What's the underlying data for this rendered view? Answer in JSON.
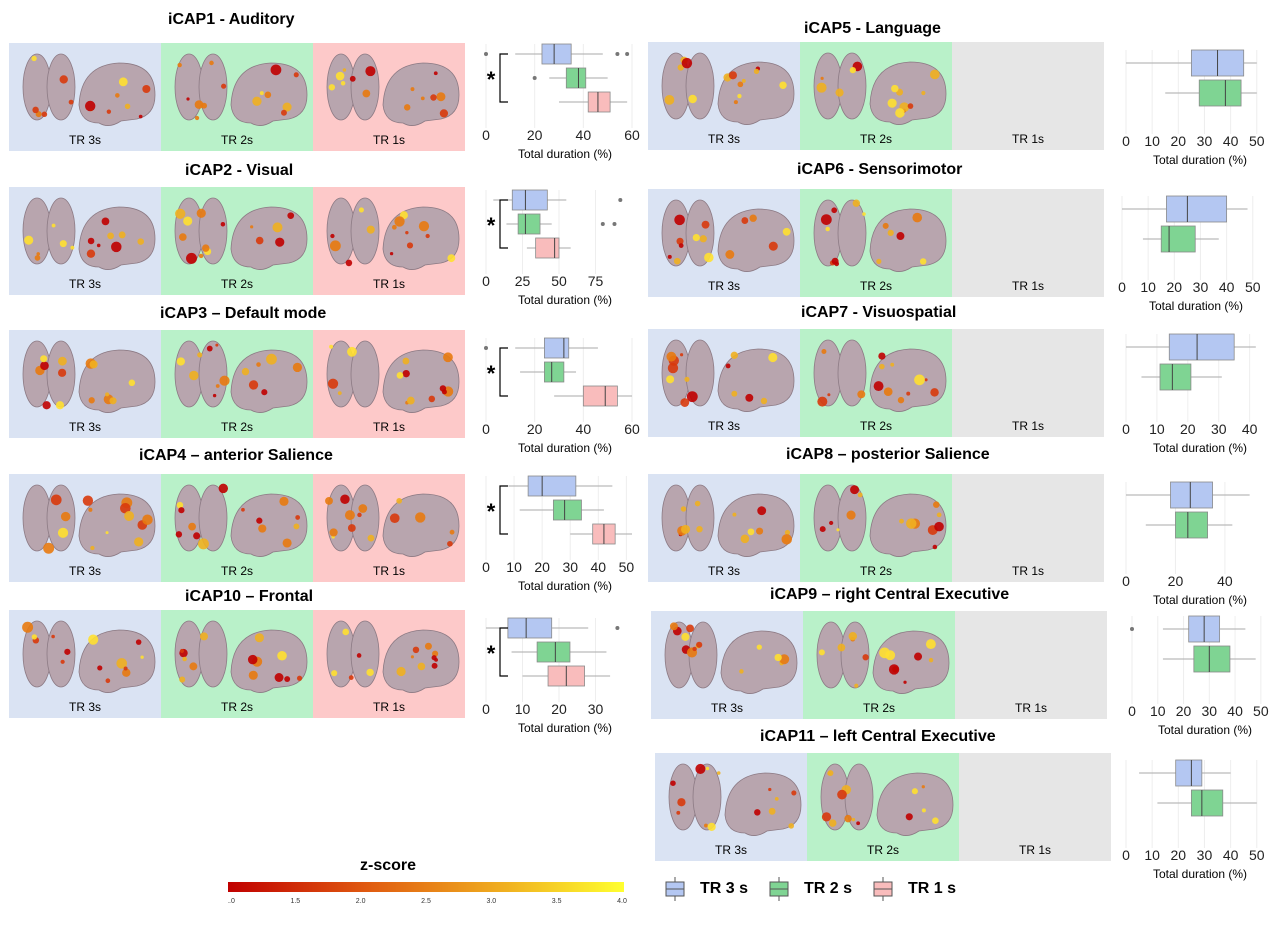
{
  "panels": [
    {
      "id": "icap1",
      "title": "iCAP1 - Auditory",
      "tr_labels": [
        "TR 3s",
        "TR 2s",
        "TR 1s"
      ],
      "has_tr1": true,
      "significant": true,
      "boxes": [
        {
          "tr": "TR 3s",
          "q1": 23,
          "median": 28,
          "q3": 35,
          "wlo": 12,
          "whi": 48,
          "outliers": [
            0,
            54,
            58
          ]
        },
        {
          "tr": "TR 2s",
          "q1": 33,
          "median": 38,
          "q3": 41,
          "wlo": 26,
          "whi": 50,
          "outliers": [
            20
          ]
        },
        {
          "tr": "TR 1s",
          "q1": 42,
          "median": 46,
          "q3": 51,
          "wlo": 30,
          "whi": 58,
          "outliers": []
        }
      ],
      "xlim": [
        0,
        60
      ],
      "ticks": [
        0,
        20,
        40,
        60
      ],
      "xlabel": "Total duration (%)"
    },
    {
      "id": "icap2",
      "title": "iCAP2 - Visual",
      "tr_labels": [
        "TR 3s",
        "TR 2s",
        "TR 1s"
      ],
      "has_tr1": true,
      "significant": true,
      "boxes": [
        {
          "tr": "TR 3s",
          "q1": 18,
          "median": 27,
          "q3": 42,
          "wlo": 5,
          "whi": 55,
          "outliers": [
            92
          ]
        },
        {
          "tr": "TR 2s",
          "q1": 22,
          "median": 27,
          "q3": 37,
          "wlo": 14,
          "whi": 45,
          "outliers": [
            80,
            88
          ]
        },
        {
          "tr": "TR 1s",
          "q1": 34,
          "median": 47,
          "q3": 50,
          "wlo": 28,
          "whi": 58,
          "outliers": []
        }
      ],
      "xlim": [
        0,
        100
      ],
      "ticks": [
        0,
        25,
        50,
        75
      ],
      "xlabel": "Total duration (%)"
    },
    {
      "id": "icap3",
      "title": "iCAP3 – Default mode",
      "tr_labels": [
        "TR 3s",
        "TR 2s",
        "TR 1s"
      ],
      "has_tr1": true,
      "significant": true,
      "boxes": [
        {
          "tr": "TR 3s",
          "q1": 24,
          "median": 32,
          "q3": 34,
          "wlo": 12,
          "whi": 46,
          "outliers": [
            0
          ]
        },
        {
          "tr": "TR 2s",
          "q1": 24,
          "median": 27,
          "q3": 32,
          "wlo": 14,
          "whi": 37,
          "outliers": []
        },
        {
          "tr": "TR 1s",
          "q1": 40,
          "median": 49,
          "q3": 54,
          "wlo": 28,
          "whi": 60,
          "outliers": []
        }
      ],
      "xlim": [
        0,
        60
      ],
      "ticks": [
        0,
        20,
        40,
        60
      ],
      "xlabel": "Total duration (%)"
    },
    {
      "id": "icap4",
      "title": "iCAP4 – anterior Salience",
      "tr_labels": [
        "TR 3s",
        "TR 2s",
        "TR 1s"
      ],
      "has_tr1": true,
      "significant": true,
      "boxes": [
        {
          "tr": "TR 3s",
          "q1": 15,
          "median": 20,
          "q3": 32,
          "wlo": 8,
          "whi": 45,
          "outliers": []
        },
        {
          "tr": "TR 2s",
          "q1": 24,
          "median": 28,
          "q3": 34,
          "wlo": 12,
          "whi": 42,
          "outliers": []
        },
        {
          "tr": "TR 1s",
          "q1": 38,
          "median": 42,
          "q3": 46,
          "wlo": 30,
          "whi": 52,
          "outliers": []
        }
      ],
      "xlim": [
        0,
        52
      ],
      "ticks": [
        0,
        10,
        20,
        30,
        40,
        50
      ],
      "xlabel": "Total duration (%)"
    },
    {
      "id": "icap10",
      "title": "iCAP10 – Frontal",
      "tr_labels": [
        "TR 3s",
        "TR 2s",
        "TR 1s"
      ],
      "has_tr1": true,
      "significant": true,
      "boxes": [
        {
          "tr": "TR 3s",
          "q1": 6,
          "median": 11,
          "q3": 18,
          "wlo": 0,
          "whi": 28,
          "outliers": [
            36
          ]
        },
        {
          "tr": "TR 2s",
          "q1": 14,
          "median": 19,
          "q3": 23,
          "wlo": 7,
          "whi": 33,
          "outliers": []
        },
        {
          "tr": "TR 1s",
          "q1": 17,
          "median": 22,
          "q3": 27,
          "wlo": 10,
          "whi": 34,
          "outliers": []
        }
      ],
      "xlim": [
        0,
        40
      ],
      "ticks": [
        0,
        10,
        20,
        30
      ],
      "xlabel": "Total duration (%)"
    },
    {
      "id": "icap5",
      "title": "iCAP5 - Language",
      "tr_labels": [
        "TR 3s",
        "TR 2s",
        "TR 1s"
      ],
      "has_tr1": false,
      "significant": false,
      "boxes": [
        {
          "tr": "TR 3s",
          "q1": 25,
          "median": 35,
          "q3": 45,
          "wlo": 0,
          "whi": 50,
          "outliers": []
        },
        {
          "tr": "TR 2s",
          "q1": 28,
          "median": 38,
          "q3": 44,
          "wlo": 15,
          "whi": 50,
          "outliers": []
        }
      ],
      "xlim": [
        0,
        52
      ],
      "ticks": [
        0,
        10,
        20,
        30,
        40,
        50
      ],
      "xlabel": "Total duration (%)"
    },
    {
      "id": "icap6",
      "title": "iCAP6 - Sensorimotor",
      "tr_labels": [
        "TR 3s",
        "TR 2s",
        "TR 1s"
      ],
      "has_tr1": false,
      "significant": false,
      "boxes": [
        {
          "tr": "TR 3s",
          "q1": 17,
          "median": 25,
          "q3": 40,
          "wlo": 0,
          "whi": 48,
          "outliers": []
        },
        {
          "tr": "TR 2s",
          "q1": 15,
          "median": 18,
          "q3": 28,
          "wlo": 8,
          "whi": 37,
          "outliers": []
        }
      ],
      "xlim": [
        0,
        52
      ],
      "ticks": [
        0,
        10,
        20,
        30,
        40,
        50
      ],
      "xlabel": "Total duration (%)"
    },
    {
      "id": "icap7",
      "title": "iCAP7 - Visuospatial",
      "tr_labels": [
        "TR 3s",
        "TR 2s",
        "TR 1s"
      ],
      "has_tr1": false,
      "significant": false,
      "boxes": [
        {
          "tr": "TR 3s",
          "q1": 14,
          "median": 23,
          "q3": 35,
          "wlo": 0,
          "whi": 42,
          "outliers": []
        },
        {
          "tr": "TR 2s",
          "q1": 11,
          "median": 15,
          "q3": 21,
          "wlo": 5,
          "whi": 31,
          "outliers": []
        }
      ],
      "xlim": [
        0,
        44
      ],
      "ticks": [
        0,
        10,
        20,
        30,
        40
      ],
      "xlabel": "Total duration (%)"
    },
    {
      "id": "icap8",
      "title": "iCAP8 – posterior Salience",
      "tr_labels": [
        "TR 3s",
        "TR 2s",
        "TR 1s"
      ],
      "has_tr1": false,
      "significant": false,
      "boxes": [
        {
          "tr": "TR 3s",
          "q1": 18,
          "median": 26,
          "q3": 35,
          "wlo": 0,
          "whi": 50,
          "outliers": []
        },
        {
          "tr": "TR 2s",
          "q1": 20,
          "median": 25,
          "q3": 33,
          "wlo": 8,
          "whi": 43,
          "outliers": []
        }
      ],
      "xlim": [
        0,
        55
      ],
      "ticks": [
        0,
        20,
        40
      ],
      "xlabel": "Total duration (%)"
    },
    {
      "id": "icap9",
      "title": "iCAP9 – right Central Executive",
      "tr_labels": [
        "TR 3s",
        "TR 2s",
        "TR 1s"
      ],
      "has_tr1": false,
      "significant": false,
      "boxes": [
        {
          "tr": "TR 3s",
          "q1": 22,
          "median": 28,
          "q3": 34,
          "wlo": 12,
          "whi": 44,
          "outliers": [
            0
          ]
        },
        {
          "tr": "TR 2s",
          "q1": 24,
          "median": 30,
          "q3": 38,
          "wlo": 12,
          "whi": 48,
          "outliers": []
        }
      ],
      "xlim": [
        0,
        52
      ],
      "ticks": [
        0,
        10,
        20,
        30,
        40,
        50
      ],
      "xlabel": "Total duration (%)"
    },
    {
      "id": "icap11",
      "title": "iCAP11 – left Central Executive",
      "tr_labels": [
        "TR 3s",
        "TR 2s",
        "TR 1s"
      ],
      "has_tr1": false,
      "significant": false,
      "boxes": [
        {
          "tr": "TR 3s",
          "q1": 19,
          "median": 25,
          "q3": 29,
          "wlo": 5,
          "whi": 40,
          "outliers": []
        },
        {
          "tr": "TR 2s",
          "q1": 25,
          "median": 29,
          "q3": 37,
          "wlo": 12,
          "whi": 50,
          "outliers": []
        }
      ],
      "xlim": [
        0,
        52
      ],
      "ticks": [
        0,
        10,
        20,
        30,
        40,
        50
      ],
      "xlabel": "Total duration (%)"
    }
  ],
  "colorbar": {
    "title": "z-score",
    "ticks": [
      "1.0",
      "1.5",
      "2.0",
      "2.5",
      "3.0",
      "3.5",
      "4.0"
    ],
    "colors": [
      "#c00000",
      "#e05a10",
      "#f0b020",
      "#ffff30"
    ]
  },
  "legend": [
    {
      "label": "TR 3 s",
      "color": "#b4c7f2"
    },
    {
      "label": "TR 2 s",
      "color": "#7fd493"
    },
    {
      "label": "TR 1 s",
      "color": "#f9bcbc"
    }
  ],
  "box_colors": {
    "TR 3s": "#b4c7f2",
    "TR 2s": "#7fd493",
    "TR 1s": "#f9bcbc"
  },
  "chart_data": [
    {
      "type": "boxplot",
      "panel": "iCAP1 - Auditory",
      "categories": [
        "TR 3s",
        "TR 2s",
        "TR 1s"
      ],
      "xlabel": "Total duration (%)",
      "xlim": [
        0,
        60
      ]
    },
    {
      "type": "boxplot",
      "panel": "iCAP2 - Visual",
      "categories": [
        "TR 3s",
        "TR 2s",
        "TR 1s"
      ],
      "xlabel": "Total duration (%)",
      "xlim": [
        0,
        100
      ]
    },
    {
      "type": "boxplot",
      "panel": "iCAP3 – Default mode",
      "categories": [
        "TR 3s",
        "TR 2s",
        "TR 1s"
      ],
      "xlabel": "Total duration (%)",
      "xlim": [
        0,
        60
      ]
    },
    {
      "type": "boxplot",
      "panel": "iCAP4 – anterior Salience",
      "categories": [
        "TR 3s",
        "TR 2s",
        "TR 1s"
      ],
      "xlabel": "Total duration (%)",
      "xlim": [
        0,
        52
      ]
    },
    {
      "type": "boxplot",
      "panel": "iCAP10 – Frontal",
      "categories": [
        "TR 3s",
        "TR 2s",
        "TR 1s"
      ],
      "xlabel": "Total duration (%)",
      "xlim": [
        0,
        40
      ]
    },
    {
      "type": "boxplot",
      "panel": "iCAP5 - Language",
      "categories": [
        "TR 3s",
        "TR 2s"
      ],
      "xlabel": "Total duration (%)",
      "xlim": [
        0,
        52
      ]
    },
    {
      "type": "boxplot",
      "panel": "iCAP6 - Sensorimotor",
      "categories": [
        "TR 3s",
        "TR 2s"
      ],
      "xlabel": "Total duration (%)",
      "xlim": [
        0,
        52
      ]
    },
    {
      "type": "boxplot",
      "panel": "iCAP7 - Visuospatial",
      "categories": [
        "TR 3s",
        "TR 2s"
      ],
      "xlabel": "Total duration (%)",
      "xlim": [
        0,
        44
      ]
    },
    {
      "type": "boxplot",
      "panel": "iCAP8 – posterior Salience",
      "categories": [
        "TR 3s",
        "TR 2s"
      ],
      "xlabel": "Total duration (%)",
      "xlim": [
        0,
        55
      ]
    },
    {
      "type": "boxplot",
      "panel": "iCAP9 – right Central Executive",
      "categories": [
        "TR 3s",
        "TR 2s"
      ],
      "xlabel": "Total duration (%)",
      "xlim": [
        0,
        52
      ]
    },
    {
      "type": "boxplot",
      "panel": "iCAP11 – left Central Executive",
      "categories": [
        "TR 3s",
        "TR 2s"
      ],
      "xlabel": "Total duration (%)",
      "xlim": [
        0,
        52
      ]
    }
  ]
}
